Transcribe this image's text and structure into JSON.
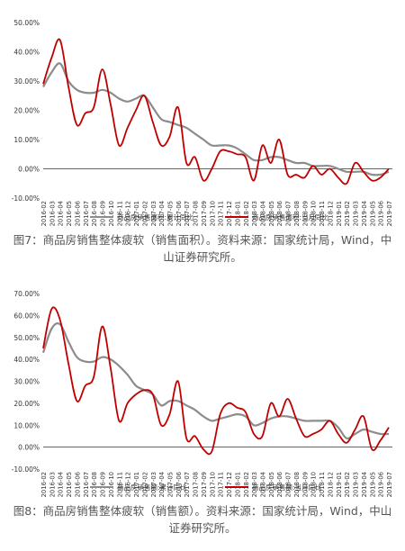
{
  "chart_data": [
    {
      "type": "line",
      "x": [
        "2016-02",
        "2016-03",
        "2016-04",
        "2016-05",
        "2016-06",
        "2016-07",
        "2016-08",
        "2016-09",
        "2016-10",
        "2016-11",
        "2016-12",
        "2017-01",
        "2017-02",
        "2017-03",
        "2017-04",
        "2017-05",
        "2017-06",
        "2017-07",
        "2017-08",
        "2017-09",
        "2017-10",
        "2017-11",
        "2017-12",
        "2018-01",
        "2018-02",
        "2018-03",
        "2018-04",
        "2018-05",
        "2018-06",
        "2018-07",
        "2018-08",
        "2018-09",
        "2018-10",
        "2018-11",
        "2018-12",
        "2019-01",
        "2019-02",
        "2019-03",
        "2019-04",
        "2019-05",
        "2019-06",
        "2019-07"
      ],
      "ylim": [
        -10,
        50
      ],
      "yticks": [
        "50.00%",
        "40.00%",
        "30.00%",
        "20.00%",
        "10.00%",
        "0.00%",
        "-10.00%"
      ],
      "series": [
        {
          "name": "商品房销售面积:累计同比",
          "color": "#8c8c8c",
          "values": [
            28,
            33,
            36,
            30,
            27,
            26,
            26,
            27,
            26,
            24,
            23,
            24,
            25,
            21,
            17,
            16,
            15,
            14,
            12,
            10,
            8,
            8,
            8,
            7,
            5,
            3,
            3,
            4,
            4,
            3,
            2,
            2,
            1,
            1,
            1,
            0,
            -1,
            -1,
            -1,
            -2,
            -2,
            -1
          ]
        },
        {
          "name": "商品房销售面积:当月同比",
          "color": "#c00000",
          "values": [
            29,
            38,
            44,
            28,
            15,
            19,
            21,
            34,
            22,
            8,
            14,
            20,
            25,
            16,
            8,
            11,
            21,
            2,
            4,
            -4,
            0,
            6,
            6,
            5,
            4,
            -4,
            8,
            2,
            10,
            -2,
            -2,
            -3,
            1,
            -2,
            0,
            -3,
            -5,
            2,
            -1,
            -4,
            -3,
            0
          ]
        }
      ]
    },
    {
      "type": "line",
      "x": [
        "2016-02",
        "2016-03",
        "2016-04",
        "2016-05",
        "2016-06",
        "2016-07",
        "2016-08",
        "2016-09",
        "2016-10",
        "2016-11",
        "2016-12",
        "2017-01",
        "2017-02",
        "2017-03",
        "2017-04",
        "2017-05",
        "2017-06",
        "2017-07",
        "2017-08",
        "2017-09",
        "2017-10",
        "2017-11",
        "2017-12",
        "2018-01",
        "2018-02",
        "2018-03",
        "2018-04",
        "2018-05",
        "2018-06",
        "2018-07",
        "2018-08",
        "2018-09",
        "2018-10",
        "2018-11",
        "2018-12",
        "2019-01",
        "2019-02",
        "2019-03",
        "2019-04",
        "2019-05",
        "2019-06",
        "2019-07"
      ],
      "ylim": [
        -10,
        70
      ],
      "yticks": [
        "70.00%",
        "60.00%",
        "50.00%",
        "40.00%",
        "30.00%",
        "20.00%",
        "10.00%",
        "0.00%",
        "-10.00%"
      ],
      "series": [
        {
          "name": "商品房销售额:累计同比",
          "color": "#8c8c8c",
          "values": [
            43,
            54,
            56,
            48,
            41,
            39,
            39,
            41,
            40,
            37,
            33,
            28,
            26,
            24,
            19,
            21,
            21,
            19,
            17,
            14,
            12,
            13,
            14,
            15,
            14,
            10,
            11,
            13,
            14,
            14,
            13,
            12,
            12,
            12,
            12,
            9,
            4,
            6,
            8,
            7,
            6,
            6
          ]
        },
        {
          "name": "商品房销售额:当月同比",
          "color": "#c00000",
          "values": [
            45,
            63,
            58,
            38,
            21,
            28,
            32,
            55,
            36,
            12,
            20,
            24,
            26,
            24,
            10,
            15,
            30,
            4,
            5,
            -1,
            -2,
            15,
            20,
            18,
            16,
            6,
            5,
            20,
            14,
            22,
            13,
            5,
            6,
            8,
            12,
            6,
            2,
            8,
            14,
            -1,
            3,
            9
          ]
        }
      ]
    }
  ],
  "captions": [
    "图7：商品房销售整体疲软（销售面积）。资料来源：国家统计局，Wind，中山证券研究所。",
    "图8：商品房销售整体疲软（销售额）。资料来源：国家统计局，Wind，中山证券研究所。"
  ]
}
